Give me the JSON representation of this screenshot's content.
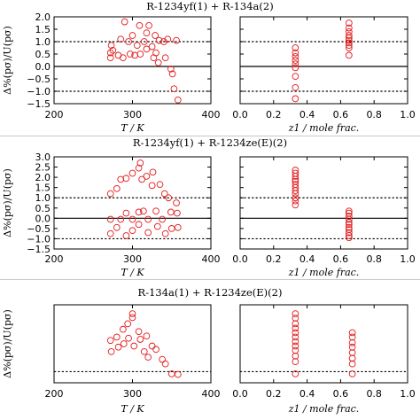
{
  "colors": {
    "marker": "#e31a1c",
    "axis": "#000000",
    "separator": "#c8c8c8"
  },
  "chart_data": [
    {
      "type": "scatter",
      "title": "R-1234yf(1) + R-134a(2)",
      "ylabel": "Δ%(pσ)/U(pσ)",
      "yticks": [
        "2.0",
        "1.5",
        "1.0",
        "0.5",
        "0.0",
        "−0.5",
        "−1.0",
        "−1.5"
      ],
      "ylim": [
        -1.5,
        2.0
      ],
      "refs": {
        "solid": [
          0
        ],
        "dotted": [
          1,
          -1
        ]
      },
      "left": {
        "xlabel": "T / K",
        "xlim": [
          200,
          400
        ],
        "xticks": [
          "200",
          "300",
          "400"
        ],
        "points": [
          [
            272,
            0.35
          ],
          [
            272,
            0.55
          ],
          [
            273,
            0.85
          ],
          [
            275,
            0.65
          ],
          [
            282,
            0.45
          ],
          [
            285,
            1.1
          ],
          [
            288,
            0.35
          ],
          [
            290,
            1.8
          ],
          [
            295,
            1.0
          ],
          [
            297,
            0.5
          ],
          [
            300,
            1.25
          ],
          [
            303,
            0.45
          ],
          [
            306,
            0.85
          ],
          [
            309,
            1.65
          ],
          [
            310,
            0.5
          ],
          [
            315,
            1.0
          ],
          [
            318,
            1.35
          ],
          [
            318,
            0.7
          ],
          [
            321,
            1.65
          ],
          [
            325,
            0.8
          ],
          [
            327,
            0.35
          ],
          [
            329,
            1.25
          ],
          [
            330,
            0.55
          ],
          [
            333,
            0.15
          ],
          [
            334,
            1.05
          ],
          [
            340,
            1.0
          ],
          [
            342,
            0.35
          ],
          [
            345,
            1.1
          ],
          [
            349,
            -0.1
          ],
          [
            351,
            -0.3
          ],
          [
            353,
            -0.9
          ],
          [
            356,
            1.05
          ],
          [
            358,
            -1.35
          ]
        ]
      },
      "right": {
        "xlabel": "z1 / mole frac.",
        "xlim": [
          0.0,
          1.0
        ],
        "xticks": [
          "0.0",
          "0.2",
          "0.4",
          "0.6",
          "0.8",
          "1.0"
        ],
        "points": [
          [
            0.33,
            0.75
          ],
          [
            0.33,
            0.55
          ],
          [
            0.33,
            0.4
          ],
          [
            0.33,
            0.25
          ],
          [
            0.33,
            0.1
          ],
          [
            0.33,
            -0.05
          ],
          [
            0.33,
            -0.4
          ],
          [
            0.33,
            -0.85
          ],
          [
            0.33,
            -1.3
          ],
          [
            0.65,
            1.75
          ],
          [
            0.65,
            1.55
          ],
          [
            0.65,
            1.4
          ],
          [
            0.65,
            1.25
          ],
          [
            0.65,
            1.15
          ],
          [
            0.65,
            1.05
          ],
          [
            0.65,
            0.95
          ],
          [
            0.65,
            0.85
          ],
          [
            0.65,
            0.75
          ],
          [
            0.65,
            0.45
          ]
        ]
      }
    },
    {
      "type": "scatter",
      "title": "R-1234yf(1) + R-1234ze(E)(2)",
      "ylabel": "Δ%(pσ)/U(pσ)",
      "yticks": [
        "3.0",
        "2.5",
        "2.0",
        "1.5",
        "1.0",
        "0.5",
        "0.0",
        "−0.5",
        "−1.0",
        "−1.5"
      ],
      "ylim": [
        -1.5,
        3.0
      ],
      "refs": {
        "solid": [
          0
        ],
        "dotted": [
          1,
          -1
        ]
      },
      "left": {
        "xlabel": "T / K",
        "xlim": [
          200,
          400
        ],
        "xticks": [
          "200",
          "300",
          "400"
        ],
        "points": [
          [
            272,
            1.2
          ],
          [
            272,
            -0.05
          ],
          [
            272,
            -0.75
          ],
          [
            280,
            1.45
          ],
          [
            280,
            -0.45
          ],
          [
            285,
            1.9
          ],
          [
            285,
            -0.05
          ],
          [
            292,
            1.95
          ],
          [
            292,
            0.25
          ],
          [
            292,
            -0.85
          ],
          [
            300,
            2.2
          ],
          [
            300,
            -0.05
          ],
          [
            300,
            -0.6
          ],
          [
            308,
            2.45
          ],
          [
            308,
            0.3
          ],
          [
            308,
            -0.3
          ],
          [
            310,
            2.7
          ],
          [
            312,
            1.9
          ],
          [
            314,
            0.35
          ],
          [
            318,
            2.05
          ],
          [
            320,
            -0.05
          ],
          [
            320,
            -0.7
          ],
          [
            325,
            1.6
          ],
          [
            326,
            2.25
          ],
          [
            330,
            0.35
          ],
          [
            332,
            -0.4
          ],
          [
            335,
            1.65
          ],
          [
            338,
            -0.05
          ],
          [
            341,
            1.2
          ],
          [
            342,
            -0.75
          ],
          [
            346,
            1.0
          ],
          [
            349,
            0.3
          ],
          [
            350,
            -0.5
          ],
          [
            356,
            0.75
          ],
          [
            357,
            0.25
          ],
          [
            358,
            -0.45
          ]
        ]
      },
      "right": {
        "xlabel": "z1 / mole frac.",
        "xlim": [
          0.0,
          1.0
        ],
        "xticks": [
          "0.0",
          "0.2",
          "0.4",
          "0.6",
          "0.8",
          "1.0"
        ],
        "points": [
          [
            0.33,
            2.35
          ],
          [
            0.33,
            2.2
          ],
          [
            0.33,
            2.05
          ],
          [
            0.33,
            1.9
          ],
          [
            0.33,
            1.8
          ],
          [
            0.33,
            1.65
          ],
          [
            0.33,
            1.5
          ],
          [
            0.33,
            1.35
          ],
          [
            0.33,
            1.2
          ],
          [
            0.33,
            1.0
          ],
          [
            0.33,
            0.85
          ],
          [
            0.33,
            0.65
          ],
          [
            0.65,
            0.35
          ],
          [
            0.65,
            0.25
          ],
          [
            0.65,
            0.1
          ],
          [
            0.65,
            -0.05
          ],
          [
            0.65,
            -0.2
          ],
          [
            0.65,
            -0.3
          ],
          [
            0.65,
            -0.45
          ],
          [
            0.65,
            -0.55
          ],
          [
            0.65,
            -0.7
          ],
          [
            0.65,
            -0.85
          ],
          [
            0.65,
            -0.95
          ]
        ]
      }
    },
    {
      "type": "scatter",
      "title": "R-134a(1) + R-1234ze(E)(2)",
      "ylabel": "Δ%(pσ)/U(pσ)",
      "yticks": [],
      "ylim": [
        0,
        7
      ],
      "refs": {
        "solid": [],
        "dotted": [
          1
        ]
      },
      "left": {
        "xlabel": "T / K",
        "xlim": [
          200,
          400
        ],
        "xticks": [
          "200",
          "300",
          "400"
        ],
        "points": [
          [
            272,
            3.8
          ],
          [
            273,
            2.8
          ],
          [
            280,
            4.1
          ],
          [
            282,
            3.2
          ],
          [
            288,
            4.8
          ],
          [
            289,
            3.5
          ],
          [
            294,
            5.3
          ],
          [
            295,
            4.0
          ],
          [
            300,
            6.2
          ],
          [
            300,
            5.85
          ],
          [
            302,
            3.3
          ],
          [
            308,
            4.6
          ],
          [
            310,
            3.9
          ],
          [
            315,
            2.8
          ],
          [
            318,
            4.2
          ],
          [
            320,
            2.3
          ],
          [
            325,
            3.3
          ],
          [
            330,
            3.0
          ],
          [
            338,
            2.1
          ],
          [
            342,
            1.7
          ],
          [
            350,
            0.8
          ],
          [
            358,
            0.75
          ]
        ]
      },
      "right": {
        "xlabel": "z1 / mole frac.",
        "xlim": [
          0.0,
          1.0
        ],
        "xticks": [
          "0.0",
          "0.2",
          "0.4",
          "0.6",
          "0.8",
          "1.0"
        ],
        "points": [
          [
            0.33,
            6.2
          ],
          [
            0.33,
            5.8
          ],
          [
            0.33,
            5.3
          ],
          [
            0.33,
            4.9
          ],
          [
            0.33,
            4.5
          ],
          [
            0.33,
            4.1
          ],
          [
            0.33,
            3.7
          ],
          [
            0.33,
            3.3
          ],
          [
            0.33,
            2.9
          ],
          [
            0.33,
            2.4
          ],
          [
            0.33,
            1.9
          ],
          [
            0.33,
            0.8
          ],
          [
            0.67,
            4.5
          ],
          [
            0.67,
            4.1
          ],
          [
            0.67,
            3.6
          ],
          [
            0.67,
            3.2
          ],
          [
            0.67,
            2.7
          ],
          [
            0.67,
            2.2
          ],
          [
            0.67,
            1.7
          ],
          [
            0.67,
            0.8
          ]
        ]
      }
    }
  ]
}
